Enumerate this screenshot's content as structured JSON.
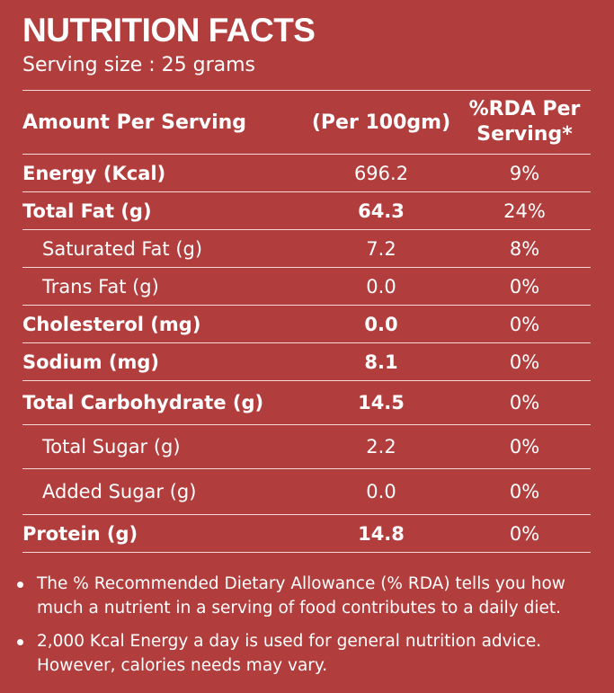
{
  "header": {
    "title": "NUTRITION FACTS",
    "serving": "Serving size : 25 grams"
  },
  "table": {
    "headers": [
      "Amount Per Serving",
      "(Per 100gm)",
      "%RDA Per Serving*"
    ],
    "rows": [
      {
        "name": "Energy (Kcal)",
        "value": "696.2",
        "rda": "9%"
      },
      {
        "name": "Total Fat (g)",
        "value": "64.3",
        "rda": "24%"
      },
      {
        "name": "Saturated Fat (g)",
        "value": "7.2",
        "rda": "8%"
      },
      {
        "name": "Trans Fat (g)",
        "value": "0.0",
        "rda": "0%"
      },
      {
        "name": "Cholesterol (mg)",
        "value": "0.0",
        "rda": "0%"
      },
      {
        "name": "Sodium  (mg)",
        "value": "8.1",
        "rda": "0%"
      },
      {
        "name": "Total Carbohydrate (g)",
        "value": "14.5",
        "rda": "0%"
      },
      {
        "name": "Total Sugar (g)",
        "value": "2.2",
        "rda": "0%"
      },
      {
        "name": "Added Sugar (g)",
        "value": "0.0",
        "rda": "0%"
      },
      {
        "name": "Protein (g)",
        "value": "14.8",
        "rda": "0%"
      }
    ]
  },
  "notes": [
    "The % Recommended Dietary Allowance (% RDA) tells you how much a nutrient in a serving of food contributes to a daily diet.",
    "2,000 Kcal Energy a day is used for general nutrition advice. However, calories needs may vary."
  ]
}
